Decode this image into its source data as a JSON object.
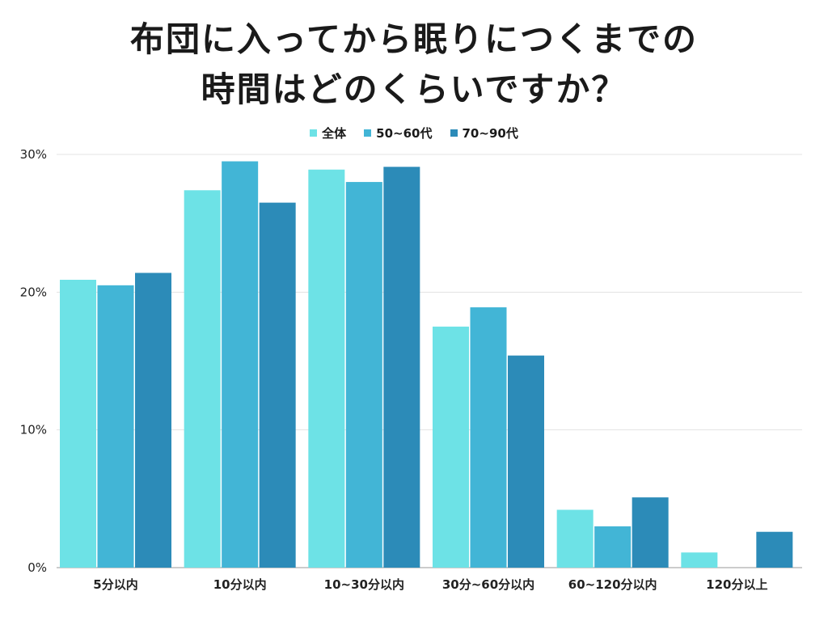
{
  "title_line1": "布団に入ってから眠りにつくまでの",
  "title_line2": "時間はどのくらいですか？",
  "chart_data": {
    "type": "bar",
    "title": "布団に入ってから眠りにつくまでの時間はどのくらいですか？",
    "categories": [
      "5分以内",
      "10分以内",
      "10~30分以内",
      "30分~60分以内",
      "60~120分以内",
      "120分以上"
    ],
    "series": [
      {
        "name": "全体",
        "color": "#6de2e6",
        "values": [
          20.9,
          27.4,
          28.9,
          17.5,
          4.2,
          1.1
        ]
      },
      {
        "name": "50~60代",
        "color": "#42b5d6",
        "values": [
          20.5,
          29.5,
          28.0,
          18.9,
          3.0,
          0
        ]
      },
      {
        "name": "70~90代",
        "color": "#2c8bb8",
        "values": [
          21.4,
          26.5,
          29.1,
          15.4,
          5.1,
          2.6
        ]
      }
    ],
    "ylim": [
      0,
      30
    ],
    "yticks": [
      "0%",
      "10%",
      "20%",
      "30%"
    ],
    "grid": true,
    "legend_position": "top-center"
  }
}
